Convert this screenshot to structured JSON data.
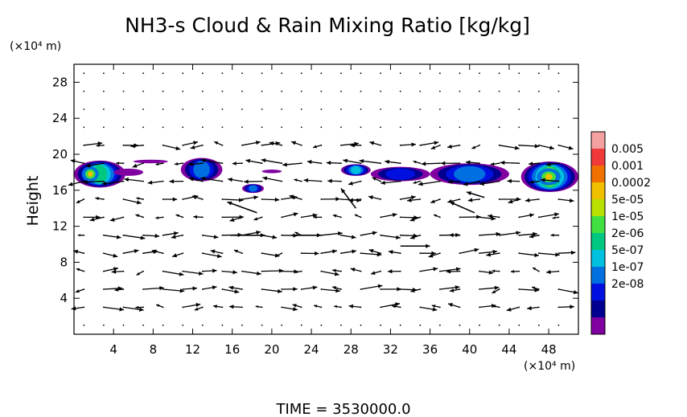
{
  "chart_data": {
    "type": "heatmap",
    "title": "NH3-s Cloud & Rain Mixing Ratio [kg/kg]",
    "ylabel": "Height",
    "y_unit": "(×10⁴ m)",
    "x_unit": "(×10⁴ m)",
    "xlim": [
      0,
      51
    ],
    "ylim": [
      0,
      30
    ],
    "x_ticks": [
      "4",
      "8",
      "12",
      "16",
      "20",
      "24",
      "28",
      "32",
      "36",
      "40",
      "44",
      "48"
    ],
    "x_tick_values": [
      4,
      8,
      12,
      16,
      20,
      24,
      28,
      32,
      36,
      40,
      44,
      48
    ],
    "y_ticks": [
      "4",
      "8",
      "12",
      "16",
      "20",
      "24",
      "28"
    ],
    "y_tick_values": [
      4,
      8,
      12,
      16,
      20,
      24,
      28
    ],
    "footer": "TIME = 3530000.0",
    "colorbar": {
      "labels": [
        "0.005",
        "0.001",
        "0.0002",
        "5e-05",
        "1e-05",
        "2e-06",
        "5e-07",
        "1e-07",
        "2e-08"
      ],
      "colors": [
        "#f4a0a0",
        "#f03a3a",
        "#f07000",
        "#f0c000",
        "#b8e000",
        "#40e040",
        "#00c880",
        "#00c0e0",
        "#0070e0",
        "#0010e0",
        "#000090",
        "#8000a0"
      ]
    },
    "cloud_regions": [
      {
        "x": [
          0,
          5.2
        ],
        "y": [
          16.3,
          19.3
        ],
        "core": [
          0.8,
          2.5
        ],
        "level": 5
      },
      {
        "x": [
          4.0,
          7.0
        ],
        "y": [
          17.6,
          18.4
        ],
        "level": 10
      },
      {
        "x": [
          6.0,
          9.5
        ],
        "y": [
          19.0,
          19.4
        ],
        "level": 10
      },
      {
        "x": [
          10.8,
          15.0
        ],
        "y": [
          17.0,
          19.6
        ],
        "level": 7
      },
      {
        "x": [
          17.0,
          19.2
        ],
        "y": [
          15.7,
          16.7
        ],
        "level": 7
      },
      {
        "x": [
          19.0,
          21.0
        ],
        "y": [
          17.9,
          18.3
        ],
        "level": 10
      },
      {
        "x": [
          27.0,
          30.0
        ],
        "y": [
          17.6,
          18.9
        ],
        "level": 6
      },
      {
        "x": [
          30.0,
          36.0
        ],
        "y": [
          17.0,
          18.6
        ],
        "level": 8
      },
      {
        "x": [
          36.0,
          44.0
        ],
        "y": [
          16.6,
          19.0
        ],
        "level": 7
      },
      {
        "x": [
          45.2,
          51.0
        ],
        "y": [
          15.8,
          19.2
        ],
        "core": [
          46.8,
          49.2
        ],
        "level": 4
      }
    ],
    "vector_field": {
      "grid_x_start": 1,
      "grid_x_step": 2,
      "grid_y_start": 1,
      "grid_y_step": 2,
      "highlight_vectors": [
        {
          "x": 15.8,
          "y": 11.0,
          "u": 3.5,
          "v": 0.0
        },
        {
          "x": 22.0,
          "y": 11.0,
          "u": 3.0,
          "v": 0.0
        },
        {
          "x": 18.5,
          "y": 13.5,
          "u": -3.0,
          "v": 1.2
        },
        {
          "x": 28.5,
          "y": 14.0,
          "u": -1.5,
          "v": 2.2
        },
        {
          "x": 33.0,
          "y": 9.8,
          "u": 3.0,
          "v": 0.0
        },
        {
          "x": 40.5,
          "y": 13.5,
          "u": -2.5,
          "v": 1.2
        },
        {
          "x": 41.5,
          "y": 15.2,
          "u": -1.8,
          "v": 0.6
        }
      ]
    }
  }
}
